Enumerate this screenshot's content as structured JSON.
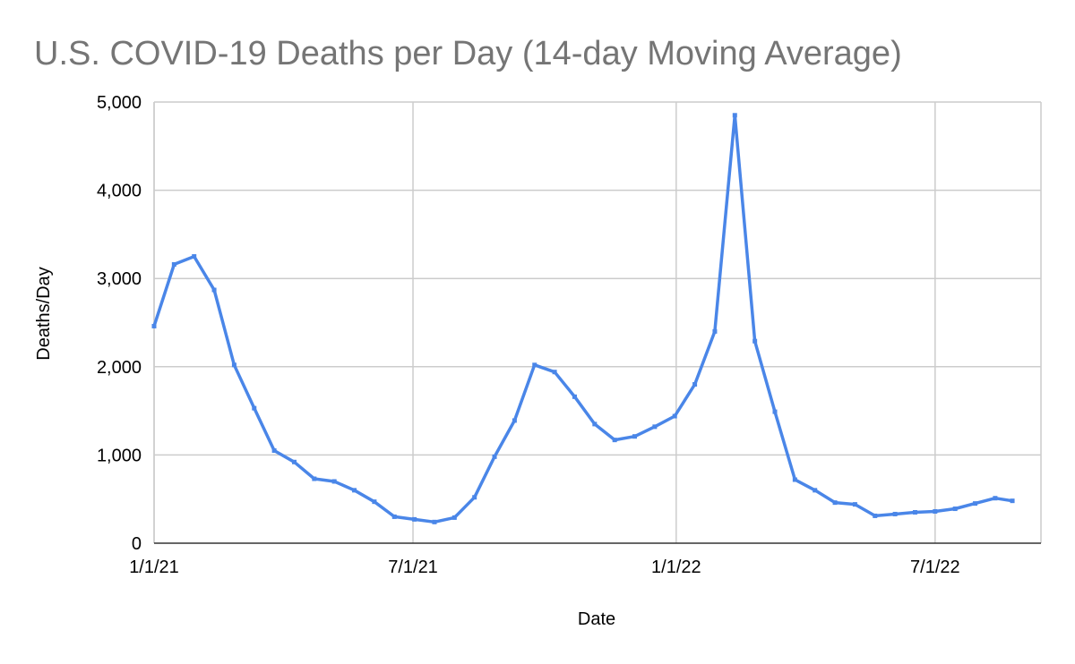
{
  "chart_data": {
    "type": "line",
    "title": "U.S. COVID-19 Deaths per Day (14-day Moving Average)",
    "xlabel": "Date",
    "ylabel": "Deaths/Day",
    "ylim": [
      0,
      5000
    ],
    "xlim_days": [
      0,
      620
    ],
    "grid": true,
    "legend": "none",
    "y_ticks": [
      {
        "value": 0,
        "label": "0"
      },
      {
        "value": 1000,
        "label": "1,000"
      },
      {
        "value": 2000,
        "label": "2,000"
      },
      {
        "value": 3000,
        "label": "3,000"
      },
      {
        "value": 4000,
        "label": "4,000"
      },
      {
        "value": 5000,
        "label": "5,000"
      }
    ],
    "x_ticks": [
      {
        "day": 0,
        "label": "1/1/21"
      },
      {
        "day": 181,
        "label": "7/1/21"
      },
      {
        "day": 365,
        "label": "1/1/22"
      },
      {
        "day": 546,
        "label": "7/1/22"
      }
    ],
    "series": [
      {
        "name": "Deaths/Day",
        "color": "#4a86e8",
        "x": [
          0,
          14,
          28,
          42,
          56,
          70,
          84,
          98,
          112,
          126,
          140,
          154,
          168,
          182,
          196,
          210,
          224,
          238,
          252,
          266,
          280,
          294,
          308,
          322,
          336,
          350,
          364,
          378,
          392,
          406,
          420,
          434,
          448,
          462,
          476,
          490,
          504,
          518,
          532,
          546,
          560,
          574,
          588,
          600
        ],
        "values": [
          2460,
          3160,
          3250,
          2870,
          2020,
          1530,
          1050,
          920,
          730,
          700,
          600,
          470,
          300,
          270,
          240,
          290,
          520,
          980,
          1390,
          2020,
          1940,
          1660,
          1350,
          1170,
          1210,
          1320,
          1440,
          1800,
          2400,
          4850,
          2290,
          1490,
          720,
          600,
          460,
          440,
          310,
          330,
          350,
          360,
          390,
          450,
          510,
          480
        ]
      }
    ]
  }
}
